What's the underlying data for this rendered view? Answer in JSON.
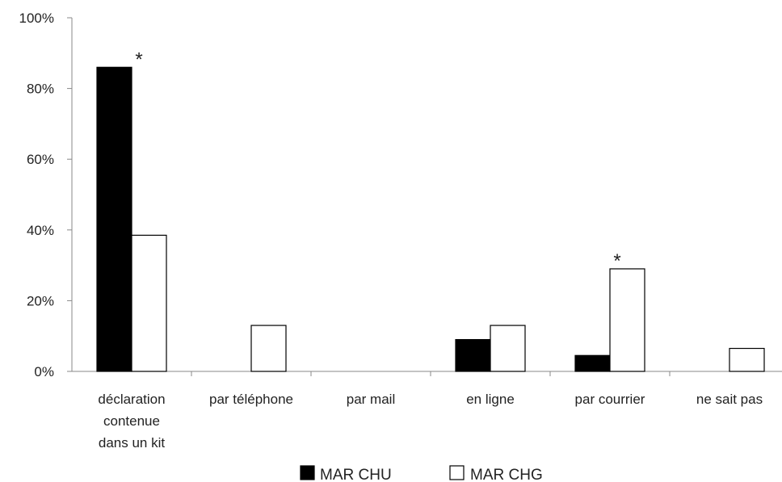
{
  "chart_data": {
    "type": "bar",
    "categories": [
      [
        "déclaration",
        "contenue",
        "dans un kit"
      ],
      [
        "par téléphone"
      ],
      [
        "par mail"
      ],
      [
        "en ligne"
      ],
      [
        "par courrier"
      ],
      [
        "ne sait pas"
      ]
    ],
    "series": [
      {
        "name": "MAR CHU",
        "values": [
          86,
          0,
          0,
          9,
          4.5,
          0
        ],
        "color": "#000000"
      },
      {
        "name": "MAR CHG",
        "values": [
          38.5,
          13,
          0,
          13,
          29,
          6.5
        ],
        "color": "#ffffff"
      }
    ],
    "yticks": [
      "0%",
      "20%",
      "40%",
      "60%",
      "80%",
      "100%"
    ],
    "ylim": [
      0,
      100
    ],
    "annotations": [
      {
        "text": "*",
        "category": 0,
        "value": 86
      },
      {
        "text": "*",
        "category": 4,
        "value": 29
      }
    ],
    "legend_position": "bottom-center",
    "grid": false
  }
}
